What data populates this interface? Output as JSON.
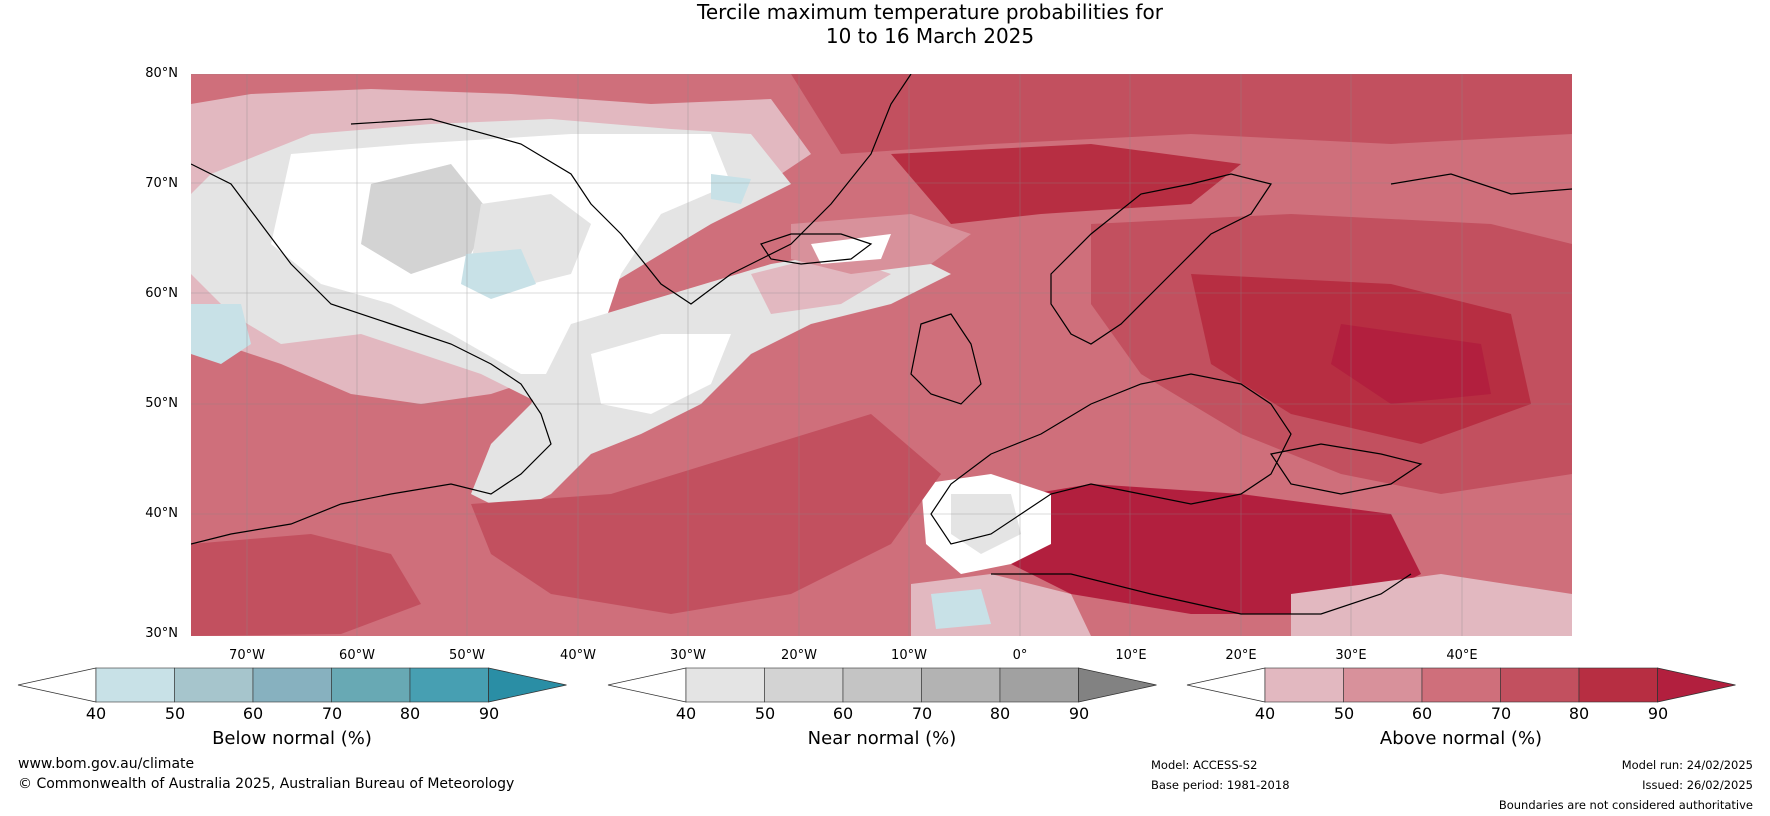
{
  "title": {
    "line1": "Tercile maximum temperature probabilities for",
    "line2": "10 to 16 March 2025"
  },
  "map": {
    "latitude_labels": [
      "80°N",
      "70°N",
      "60°N",
      "50°N",
      "40°N",
      "30°N"
    ],
    "longitude_labels": [
      "70°W",
      "60°W",
      "50°W",
      "40°W",
      "30°W",
      "20°W",
      "10°W",
      "0°",
      "10°E",
      "20°E",
      "30°E",
      "40°E"
    ],
    "extent": {
      "lon": [
        -75,
        50
      ],
      "lat": [
        30,
        81
      ]
    }
  },
  "legends": [
    {
      "label": "Below normal (%)",
      "ticks": [
        "40",
        "50",
        "60",
        "70",
        "80",
        "90"
      ],
      "colors": [
        "#ffffff",
        "#c8e1e7",
        "#a6c5cc",
        "#87b1bf",
        "#68a9b4",
        "#479fb2",
        "#2a8ea5"
      ]
    },
    {
      "label": "Near normal (%)",
      "ticks": [
        "40",
        "50",
        "60",
        "70",
        "80",
        "90"
      ],
      "colors": [
        "#ffffff",
        "#e4e4e4",
        "#d3d3d3",
        "#c4c4c4",
        "#b3b3b3",
        "#a1a1a1",
        "#828282"
      ]
    },
    {
      "label": "Above normal (%)",
      "ticks": [
        "40",
        "50",
        "60",
        "70",
        "80",
        "90"
      ],
      "colors": [
        "#ffffff",
        "#e2b8c0",
        "#d8919b",
        "#cf6f7b",
        "#c2505f",
        "#b72e42",
        "#b21f3e"
      ]
    }
  ],
  "footer": {
    "website": "www.bom.gov.au/climate",
    "copyright": "© Commonwealth of Australia 2025, Australian Bureau of Meteorology",
    "model": "Model: ACCESS-S2",
    "base_period": "Base period: 1981-2018",
    "model_run": "Model run: 24/02/2025",
    "issued": "Issued: 26/02/2025",
    "disclaimer": "Boundaries are not considered authoritative"
  }
}
